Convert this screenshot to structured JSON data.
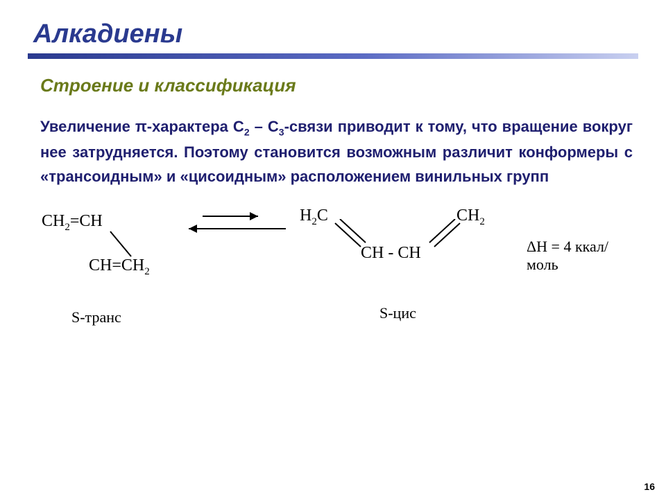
{
  "colors": {
    "title": "#2a3a8f",
    "subtitle": "#6a7a1a",
    "body": "#1f1f6f",
    "bar_dark": "#2a3a8f",
    "bar_mid": "#5b6bc4",
    "bar_light": "#c9d0f0",
    "background": "#ffffff",
    "diagram_text": "#000000"
  },
  "typography": {
    "title_pt": 38,
    "subtitle_pt": 26,
    "body_pt": 22,
    "diagram_pt": 24,
    "page_num_pt": 14
  },
  "title": "Алкадиены",
  "subtitle": "Строение и классификация",
  "body_html": "Увеличение &pi;-характера С<sub>2</sub> – С<sub>3</sub>-связи приводит к тому, что вращение вокруг нее затрудняется. Поэтому становится возможным различит конформеры с «трансоидным» и «цисоидным» расположением винильных групп",
  "diagram": {
    "trans": {
      "top_html": "CH<sub>2</sub>=CH",
      "bottom_html": "CH=CH<sub>2</sub>",
      "label": "S-транс"
    },
    "cis": {
      "left_html": "H<sub>2</sub>C",
      "right_html": "CH<sub>2</sub>",
      "center": "CH - CH",
      "label": "S-цис"
    },
    "dH_html": "&Delta;H = 4 ккал/моль",
    "arrows": {
      "forward_length": 80,
      "reverse_length": 140,
      "stroke": "#000000",
      "stroke_width": 2
    },
    "bond_lines": {
      "stroke": "#000000",
      "stroke_width": 2
    }
  },
  "page_number": "16"
}
